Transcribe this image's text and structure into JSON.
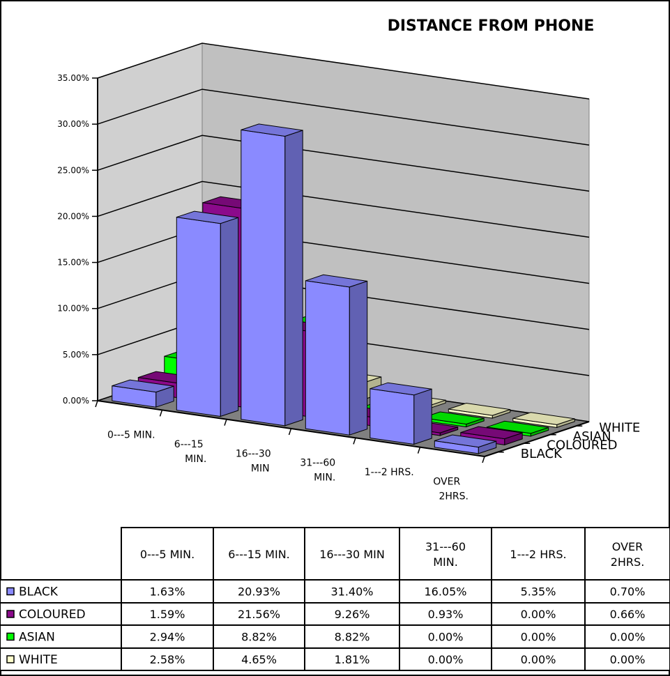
{
  "chart_data": {
    "type": "bar",
    "title": "DISTANCE FROM PHONE",
    "categories": [
      "0---5 MIN.",
      "6---15 MIN.",
      "16---30 MIN",
      "31---60 MIN.",
      "1---2 HRS.",
      "OVER 2HRS."
    ],
    "axis_categories": [
      [
        "0---5 MIN."
      ],
      [
        "6---15",
        "MIN."
      ],
      [
        "16---30",
        "MIN"
      ],
      [
        "31---60",
        "MIN."
      ],
      [
        "1---2 HRS."
      ],
      [
        "OVER",
        "2HRS."
      ]
    ],
    "table_headers": [
      [
        "0---5 MIN."
      ],
      [
        "6---15 MIN."
      ],
      [
        "16---30 MIN"
      ],
      [
        "31---60",
        "MIN."
      ],
      [
        "1---2 HRS."
      ],
      [
        "OVER",
        "2HRS."
      ]
    ],
    "ylim": [
      0,
      35
    ],
    "yticks": [
      "0.00%",
      "5.00%",
      "10.00%",
      "15.00%",
      "20.00%",
      "25.00%",
      "30.00%",
      "35.00%"
    ],
    "grid": true,
    "series": [
      {
        "name": "BLACK",
        "values": [
          1.63,
          20.93,
          31.4,
          16.05,
          5.35,
          0.7
        ],
        "labels": [
          "1.63%",
          "20.93%",
          "31.40%",
          "16.05%",
          "5.35%",
          "0.70%"
        ],
        "color": "#8A8AFF"
      },
      {
        "name": "COLOURED",
        "values": [
          1.59,
          21.56,
          9.26,
          0.93,
          0.0,
          0.66
        ],
        "labels": [
          "1.59%",
          "21.56%",
          "9.26%",
          "0.93%",
          "0.00%",
          "0.66%"
        ],
        "color": "#8B0A8B"
      },
      {
        "name": "ASIAN",
        "values": [
          2.94,
          8.82,
          8.82,
          0.0,
          0.0,
          0.0
        ],
        "labels": [
          "2.94%",
          "8.82%",
          "8.82%",
          "0.00%",
          "0.00%",
          "0.00%"
        ],
        "color": "#00FF00"
      },
      {
        "name": "WHITE",
        "values": [
          2.58,
          4.65,
          1.81,
          0.0,
          0.0,
          0.0
        ],
        "labels": [
          "2.58%",
          "4.65%",
          "1.81%",
          "0.00%",
          "0.00%",
          "0.00%"
        ],
        "color": "#FFFFCC"
      }
    ]
  }
}
